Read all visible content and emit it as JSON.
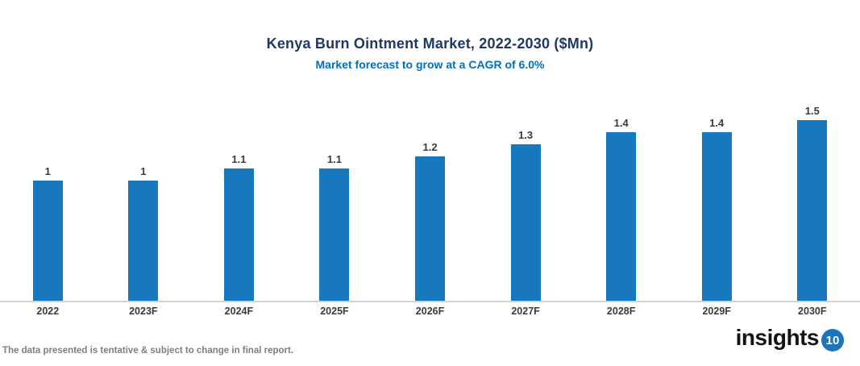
{
  "header": {
    "title": "Kenya Burn Ointment Market, 2022-2030 ($Mn)",
    "subtitle": "Market forecast to grow at a CAGR of 6.0%"
  },
  "chart_data": {
    "type": "bar",
    "title": "Kenya Burn Ointment Market, 2022-2030 ($Mn)",
    "subtitle": "Market forecast to grow at a CAGR of 6.0%",
    "categories": [
      "2022",
      "2023F",
      "2024F",
      "2025F",
      "2026F",
      "2027F",
      "2028F",
      "2029F",
      "2030F"
    ],
    "values": [
      1,
      1,
      1.1,
      1.1,
      1.2,
      1.3,
      1.4,
      1.4,
      1.5
    ],
    "value_labels": [
      "1",
      "1",
      "1.1",
      "1.1",
      "1.2",
      "1.3",
      "1.4",
      "1.4",
      "1.5"
    ],
    "xlabel": "",
    "ylabel": "",
    "ylim": [
      0,
      1.6
    ],
    "grid": false,
    "legend_position": "none",
    "bar_color": "#1778BE",
    "axis_line_color": "#D2D2D2",
    "data_label_color": "#3B3B3B"
  },
  "footer": {
    "note": "The data presented is tentative & subject to change in final report.",
    "logo_text": "insights",
    "logo_badge": "10",
    "logo_badge_color": "#1B75BC"
  },
  "colors": {
    "title": "#1F3864",
    "subtitle": "#0070C0",
    "bar": "#1778BE",
    "footer_note": "#7F7F7F"
  }
}
